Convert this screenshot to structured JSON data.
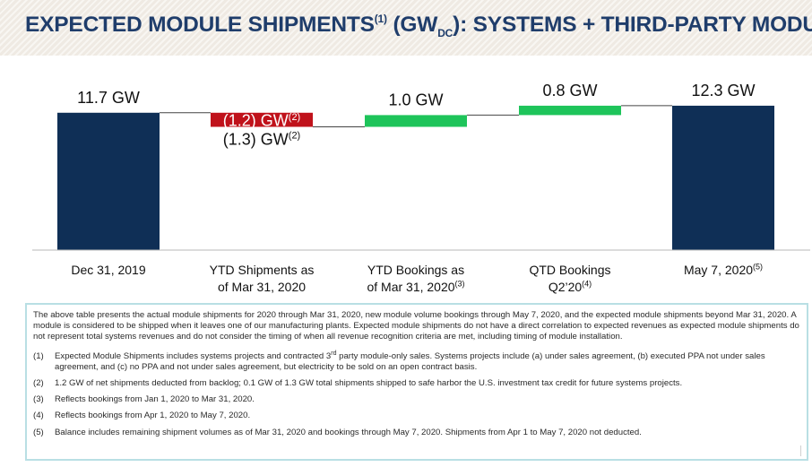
{
  "title": {
    "main": "EXPECTED MODULE SHIPMENTS",
    "sup": "(1)",
    "part2": " (GW",
    "sub": "DC",
    "part3": "): SYSTEMS + THIRD-PARTY MODULE"
  },
  "colors": {
    "title": "#1f3d6b",
    "band": "#efeae3",
    "total": "#0f2f56",
    "decrease": "#c0121b",
    "increase": "#1ec45a",
    "footnote_border": "#b9dfe4"
  },
  "chart_data": {
    "type": "bar",
    "subtype": "waterfall",
    "unit": "GW",
    "categories": [
      [
        "Dec 31, 2019"
      ],
      [
        "YTD Shipments as",
        "of Mar 31, 2020"
      ],
      [
        "YTD Bookings as",
        "of Mar 31, 2020"
      ],
      [
        "QTD Bookings",
        "Q2’20"
      ],
      [
        "May 7, 2020"
      ]
    ],
    "category_sups": [
      "",
      "",
      "(3)",
      "(4)",
      "(5)"
    ],
    "steps": [
      {
        "kind": "total",
        "value": 11.7,
        "label": "11.7 GW",
        "label_sup": ""
      },
      {
        "kind": "decrease",
        "value": -1.2,
        "label": "(1.2) GW",
        "label_sup": "(2)",
        "secondary_label": "(1.3) GW",
        "secondary_label_sup": "(2)"
      },
      {
        "kind": "increase",
        "value": 1.0,
        "label": "1.0 GW",
        "label_sup": ""
      },
      {
        "kind": "increase",
        "value": 0.8,
        "label": "0.8 GW",
        "label_sup": ""
      },
      {
        "kind": "total",
        "value": 12.3,
        "label": "12.3 GW",
        "label_sup": ""
      }
    ],
    "ylim": [
      0,
      12.6
    ],
    "grid": false,
    "legend": "none"
  },
  "footnotes": {
    "intro": "The above table presents the actual module shipments for 2020 through Mar 31, 2020, new module volume bookings through May 7, 2020, and the expected module shipments beyond Mar 31, 2020. A module is considered to be shipped when it leaves one of our manufacturing plants. Expected module shipments do not have a direct correlation to expected revenues as expected module shipments do not represent total systems revenues and do not consider the timing of when all revenue recognition criteria are met, including timing of module installation.",
    "items": [
      {
        "num": "(1)",
        "text_a": "Expected Module Shipments includes systems projects and contracted 3",
        "sup": "rd",
        "text_b": " party module-only sales. Systems projects include (a) under sales agreement, (b) executed PPA not under sales agreement, and (c) no PPA and not under sales agreement, but electricity to be sold on an open contract basis."
      },
      {
        "num": "(2)",
        "text_a": "1.2 GW of net shipments deducted from backlog; 0.1 GW of 1.3 GW total shipments shipped to safe harbor the U.S. investment tax credit for future systems projects.",
        "sup": "",
        "text_b": ""
      },
      {
        "num": "(3)",
        "text_a": "Reflects bookings from Jan 1, 2020 to Mar 31, 2020.",
        "sup": "",
        "text_b": ""
      },
      {
        "num": "(4)",
        "text_a": "Reflects bookings from Apr 1, 2020 to May 7, 2020.",
        "sup": "",
        "text_b": ""
      },
      {
        "num": "(5)",
        "text_a": "Balance includes remaining shipment volumes as of Mar 31, 2020 and bookings through May 7, 2020.  Shipments from Apr 1 to May 7, 2020 not deducted.",
        "sup": "",
        "text_b": ""
      }
    ]
  }
}
